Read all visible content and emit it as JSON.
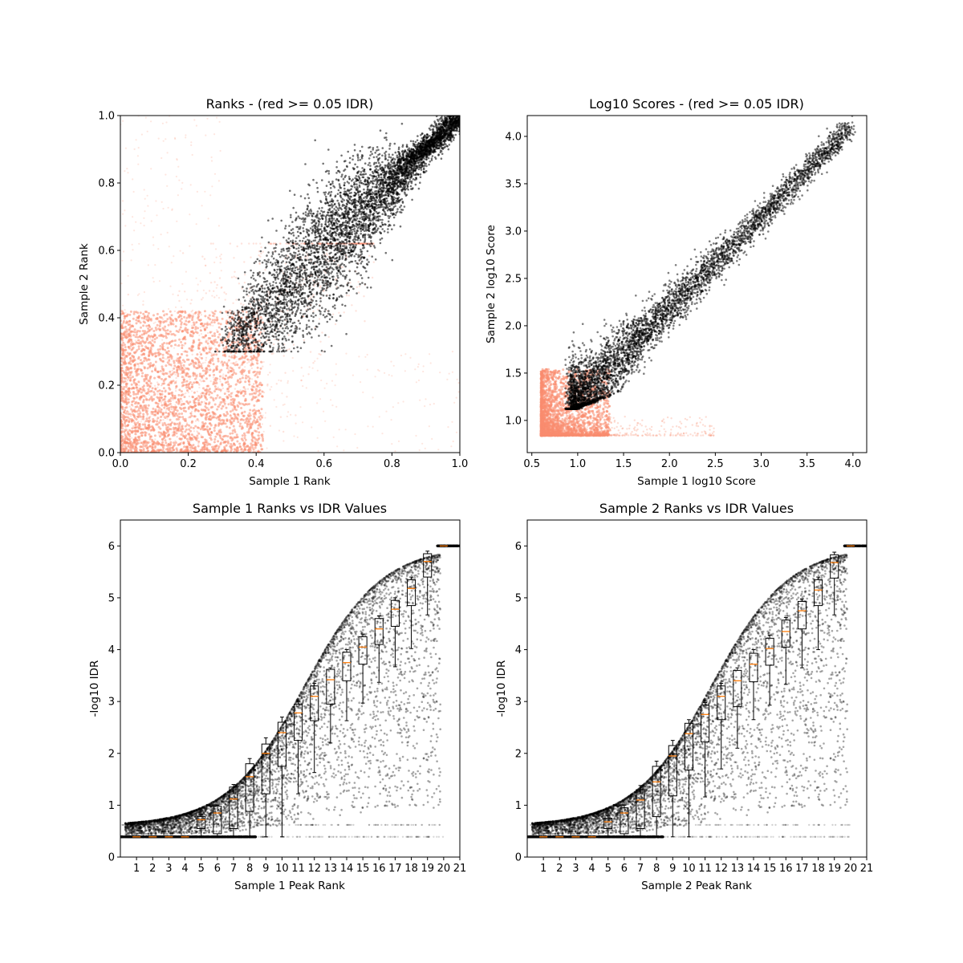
{
  "chart_data": [
    {
      "type": "scatter",
      "title": "Ranks - (red >= 0.05 IDR)",
      "xlabel": "Sample 1 Rank",
      "ylabel": "Sample 2 Rank",
      "xlim": [
        0.0,
        1.0
      ],
      "ylim": [
        0.0,
        1.0
      ],
      "xticks": [
        "0.0",
        "0.2",
        "0.4",
        "0.6",
        "0.8",
        "1.0"
      ],
      "yticks": [
        "0.0",
        "0.2",
        "0.4",
        "0.6",
        "0.8",
        "1.0"
      ],
      "series_colors": {
        "pass": "#000000",
        "fail": "#fa8d6f"
      },
      "regions": {
        "pass_band_lower_start": [
          0.31,
          0.3
        ],
        "pass_band_upper_end": [
          1.0,
          1.0
        ],
        "fail_cluster_extent": [
          0.0,
          0.45
        ]
      }
    },
    {
      "type": "scatter",
      "title": "Log10 Scores - (red >= 0.05 IDR)",
      "xlabel": "Sample 1 log10 Score",
      "ylabel": "Sample 2 log10 Score",
      "xlim": [
        0.45,
        4.15
      ],
      "ylim": [
        0.66,
        4.22
      ],
      "xticks": [
        "0.5",
        "1.0",
        "1.5",
        "2.0",
        "2.5",
        "3.0",
        "3.5",
        "4.0"
      ],
      "yticks": [
        "1.0",
        "1.5",
        "2.0",
        "2.5",
        "3.0",
        "3.5",
        "4.0"
      ],
      "series_colors": {
        "pass": "#000000",
        "fail": "#fa8d6f"
      },
      "regions": {
        "fail_min": [
          0.6,
          0.84
        ],
        "pass_min_x": 0.93,
        "pass_max": [
          4.0,
          4.05
        ]
      }
    },
    {
      "type": "scatter",
      "title": "Sample 1 Ranks vs IDR Values",
      "xlabel": "Sample 1 Peak Rank",
      "ylabel": "-log10 IDR",
      "xlim": [
        0,
        21
      ],
      "ylim": [
        0,
        6.5
      ],
      "xticks": [
        "1",
        "2",
        "3",
        "4",
        "5",
        "6",
        "7",
        "8",
        "9",
        "10",
        "11",
        "12",
        "13",
        "14",
        "15",
        "16",
        "17",
        "18",
        "19",
        "20",
        "21"
      ],
      "yticks": [
        "0",
        "1",
        "2",
        "3",
        "4",
        "5",
        "6"
      ],
      "boxplot": {
        "positions": [
          1,
          2,
          3,
          4,
          5,
          6,
          7,
          8,
          9,
          10,
          11,
          12,
          13,
          14,
          15,
          16,
          17,
          18,
          19,
          20
        ],
        "q1": [
          0.39,
          0.39,
          0.39,
          0.39,
          0.55,
          0.45,
          0.55,
          0.88,
          1.22,
          1.75,
          2.25,
          2.63,
          2.95,
          3.4,
          3.72,
          4.1,
          4.45,
          4.85,
          5.4,
          6.0
        ],
        "median": [
          0.39,
          0.39,
          0.39,
          0.39,
          0.72,
          0.85,
          1.12,
          1.55,
          2.0,
          2.4,
          2.78,
          3.1,
          3.42,
          3.75,
          4.05,
          4.4,
          4.78,
          5.18,
          5.7,
          6.0
        ],
        "q3": [
          0.39,
          0.39,
          0.39,
          0.39,
          0.78,
          0.98,
          1.35,
          1.8,
          2.18,
          2.6,
          2.95,
          3.3,
          3.62,
          3.95,
          4.25,
          4.6,
          4.95,
          5.35,
          5.85,
          6.0
        ],
        "whisker_low": [
          0.39,
          0.39,
          0.39,
          0.39,
          0.39,
          0.39,
          0.39,
          0.39,
          0.39,
          0.39,
          1.22,
          1.63,
          2.2,
          2.63,
          2.97,
          3.37,
          3.67,
          4.02,
          4.67,
          6.0
        ],
        "whisker_high": [
          0.39,
          0.39,
          0.39,
          0.39,
          0.82,
          1.0,
          1.4,
          1.9,
          2.3,
          2.7,
          3.0,
          3.35,
          3.65,
          4.0,
          4.3,
          4.65,
          5.0,
          5.4,
          5.9,
          6.0
        ]
      }
    },
    {
      "type": "scatter",
      "title": "Sample 2 Ranks vs IDR Values",
      "xlabel": "Sample 2 Peak Rank",
      "ylabel": "-log10 IDR",
      "xlim": [
        0,
        21
      ],
      "ylim": [
        0,
        6.5
      ],
      "xticks": [
        "1",
        "2",
        "3",
        "4",
        "5",
        "6",
        "7",
        "8",
        "9",
        "10",
        "11",
        "12",
        "13",
        "14",
        "15",
        "16",
        "17",
        "18",
        "19",
        "20",
        "21"
      ],
      "yticks": [
        "0",
        "1",
        "2",
        "3",
        "4",
        "5",
        "6"
      ],
      "boxplot": {
        "positions": [
          1,
          2,
          3,
          4,
          5,
          6,
          7,
          8,
          9,
          10,
          11,
          12,
          13,
          14,
          15,
          16,
          17,
          18,
          19,
          20
        ],
        "q1": [
          0.39,
          0.39,
          0.39,
          0.39,
          0.55,
          0.45,
          0.55,
          0.78,
          1.18,
          1.68,
          2.22,
          2.65,
          2.9,
          3.38,
          3.7,
          4.05,
          4.4,
          4.85,
          5.38,
          6.0
        ],
        "median": [
          0.39,
          0.39,
          0.39,
          0.39,
          0.68,
          0.85,
          1.1,
          1.45,
          1.95,
          2.38,
          2.75,
          3.1,
          3.4,
          3.72,
          4.02,
          4.35,
          4.75,
          5.15,
          5.68,
          6.0
        ],
        "q3": [
          0.39,
          0.39,
          0.39,
          0.39,
          0.75,
          0.95,
          1.3,
          1.75,
          2.15,
          2.58,
          2.93,
          3.3,
          3.6,
          3.93,
          4.22,
          4.57,
          4.93,
          5.35,
          5.83,
          6.0
        ],
        "whisker_low": [
          0.39,
          0.39,
          0.39,
          0.39,
          0.39,
          0.39,
          0.39,
          0.39,
          0.39,
          0.39,
          1.16,
          1.7,
          2.1,
          2.65,
          2.93,
          3.33,
          3.65,
          4.0,
          4.67,
          6.0
        ],
        "whisker_high": [
          0.39,
          0.39,
          0.39,
          0.39,
          0.8,
          1.0,
          1.38,
          1.85,
          2.25,
          2.65,
          2.98,
          3.35,
          3.65,
          4.0,
          4.28,
          4.62,
          4.98,
          5.4,
          5.88,
          6.0
        ]
      }
    }
  ]
}
